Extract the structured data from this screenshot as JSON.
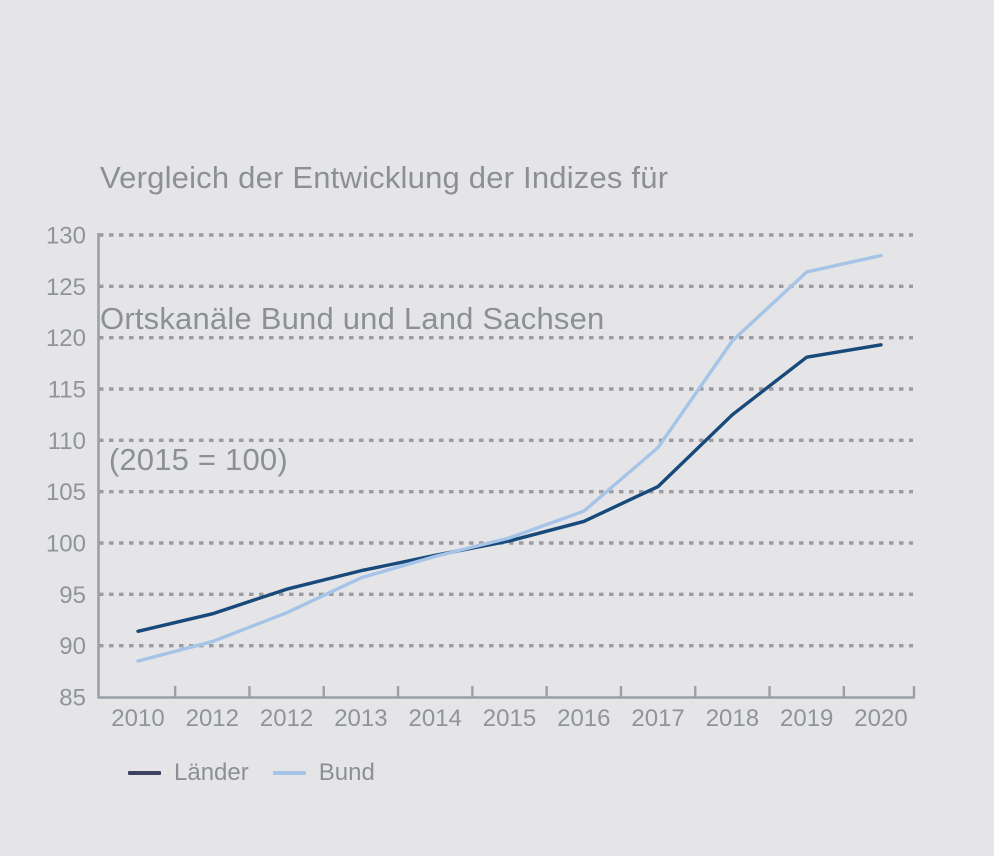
{
  "page": {
    "background_color": "#e5e5e7",
    "text_color": "#8b9096"
  },
  "chart_data": {
    "type": "line",
    "title_lines": [
      "Vergleich der Entwicklung der Indizes für",
      "Ortskanäle Bund und Land Sachsen",
      " (2015 = 100)"
    ],
    "categories": [
      "2010",
      "2012",
      "2012",
      "2013",
      "2014",
      "2015",
      "2016",
      "2017",
      "2018",
      "2019",
      "2020"
    ],
    "series": [
      {
        "name": "Länder",
        "color": "#17497B",
        "legend_color": "#3D4263",
        "values": [
          91.4,
          93.1,
          95.5,
          97.3,
          98.8,
          100.2,
          102.1,
          105.5,
          112.5,
          118.1,
          119.3
        ]
      },
      {
        "name": "Bund",
        "color": "#A5C4E7",
        "legend_color": "#A5C4E7",
        "values": [
          88.5,
          90.4,
          93.2,
          96.6,
          98.7,
          100.5,
          103.1,
          109.3,
          119.7,
          126.4,
          128.0
        ]
      }
    ],
    "ylim": [
      85,
      130
    ],
    "yticks": [
      85,
      90,
      95,
      100,
      105,
      110,
      115,
      120,
      125,
      130
    ],
    "grid": "horizontal dotted",
    "grid_color": "#9b9ba1",
    "axis_color": "#9aa0a6",
    "legend_position": "bottom-left"
  }
}
